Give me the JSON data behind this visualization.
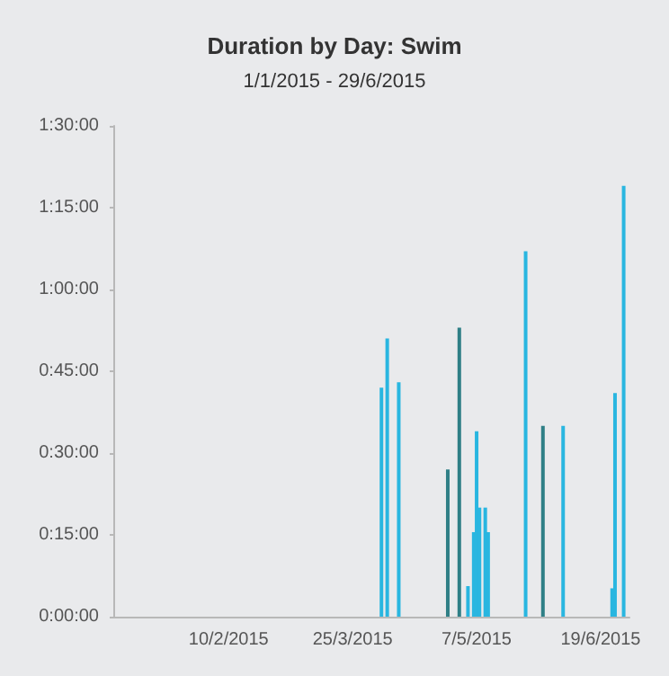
{
  "chart_data": {
    "type": "bar",
    "title": "Duration by Day: Swim",
    "subtitle": "1/1/2015 - 29/6/2015",
    "x": [
      "2015-04-04",
      "2015-04-06",
      "2015-04-10",
      "2015-04-27",
      "2015-05-01",
      "2015-05-04",
      "2015-05-06",
      "2015-05-07",
      "2015-05-08",
      "2015-05-10",
      "2015-05-11",
      "2015-05-24",
      "2015-05-30",
      "2015-06-06",
      "2015-06-23",
      "2015-06-24",
      "2015-06-27"
    ],
    "values": [
      42,
      51,
      43,
      27,
      53,
      5.6,
      15.5,
      34,
      20,
      20,
      15.5,
      67,
      35,
      35,
      5.2,
      41,
      79
    ],
    "colors": [
      "#29b6e0",
      "#29b6e0",
      "#29b6e0",
      "#2f7f86",
      "#2f7f86",
      "#29b6e0",
      "#29b6e0",
      "#29b6e0",
      "#29b6e0",
      "#29b6e0",
      "#29b6e0",
      "#29b6e0",
      "#2f7f86",
      "#29b6e0",
      "#29b6e0",
      "#29b6e0",
      "#29b6e0"
    ],
    "xlim": [
      "2015-01-01",
      "2015-06-29"
    ],
    "xticks": [
      {
        "value": "2015-02-10",
        "label": "10/2/2015"
      },
      {
        "value": "2015-03-25",
        "label": "25/3/2015"
      },
      {
        "value": "2015-05-07",
        "label": "7/5/2015"
      },
      {
        "value": "2015-06-19",
        "label": "19/6/2015"
      }
    ],
    "ylim": [
      0,
      90
    ],
    "yticks": [
      {
        "value": 0,
        "label": "0:00:00"
      },
      {
        "value": 15,
        "label": "0:15:00"
      },
      {
        "value": 30,
        "label": "0:30:00"
      },
      {
        "value": 45,
        "label": "0:45:00"
      },
      {
        "value": 60,
        "label": "1:00:00"
      },
      {
        "value": 75,
        "label": "1:15:00"
      },
      {
        "value": 90,
        "label": "1:30:00"
      }
    ],
    "grid": false
  }
}
